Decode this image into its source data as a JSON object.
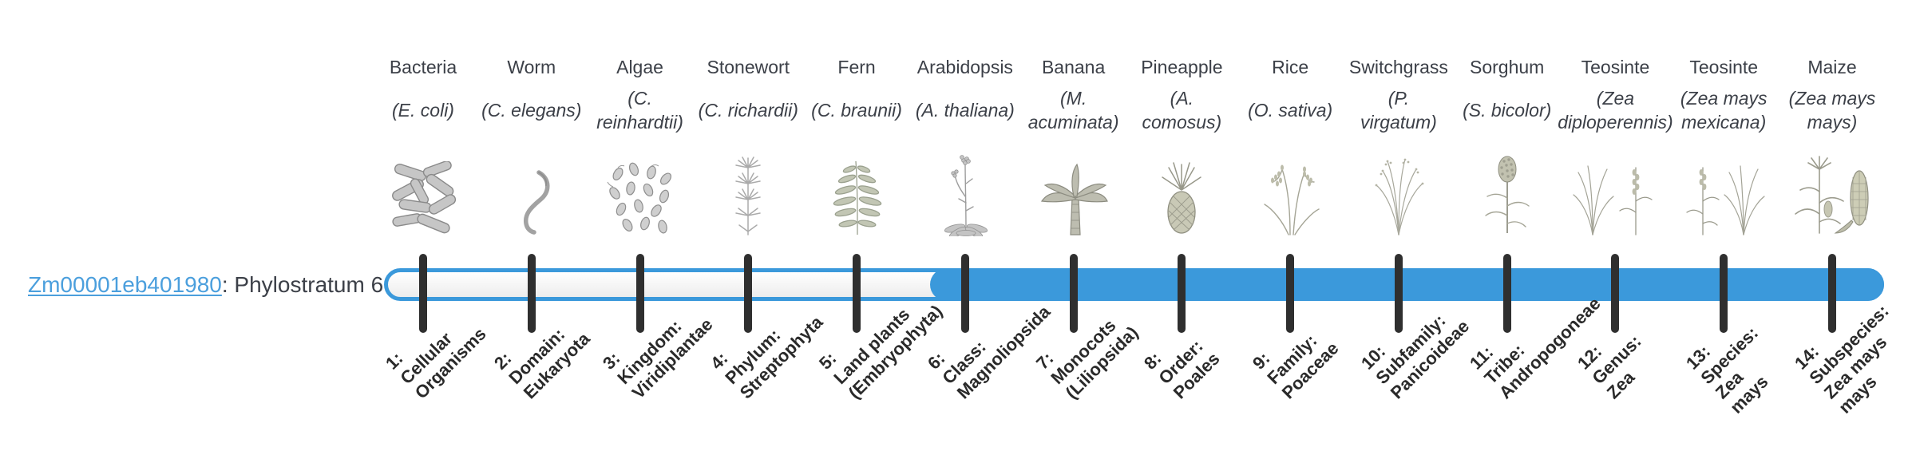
{
  "gene": {
    "id": "Zm00001eb401980",
    "suffix": ": Phylostratum 6"
  },
  "timeline": {
    "total_strata": 14,
    "fill_start_stratum": 6,
    "highlighted_stratum": 6
  },
  "colors": {
    "accent": "#3b99db",
    "link": "#4b9fdd",
    "tick": "#2f2f2f",
    "text": "#3c4048",
    "stratum_label": "#2a2a2a"
  },
  "taxa": [
    {
      "name": "Bacteria",
      "sci": "(E. coli)",
      "icon": "bacteria",
      "stratum": "1:\nCellular\nOrganisms"
    },
    {
      "name": "Worm",
      "sci": "(C. elegans)",
      "icon": "worm",
      "stratum": "2:\nDomain:\nEukaryota"
    },
    {
      "name": "Algae",
      "sci": "(C.\nreinhardtii)",
      "icon": "algae",
      "stratum": "3:\nKingdom:\nViridiplantae"
    },
    {
      "name": "Stonewort",
      "sci": "(C. richardii)",
      "icon": "stonewort",
      "stratum": "4:\nPhylum:\nStreptophyta"
    },
    {
      "name": "Fern",
      "sci": "(C. braunii)",
      "icon": "fern",
      "stratum": "5:\nLand plants\n(Embryophyta)"
    },
    {
      "name": "Arabidopsis",
      "sci": "(A. thaliana)",
      "icon": "arabidopsis",
      "stratum": "6:\nClass:\nMagnoliopsida"
    },
    {
      "name": "Banana",
      "sci": "(M.\nacuminata)",
      "icon": "banana",
      "stratum": "7:\nMonocots\n(Liliopsida)"
    },
    {
      "name": "Pineapple",
      "sci": "(A.\ncomosus)",
      "icon": "pineapple",
      "stratum": "8:\nOrder:\nPoales"
    },
    {
      "name": "Rice",
      "sci": "(O. sativa)",
      "icon": "rice",
      "stratum": "9:\nFamily:\nPoaceae"
    },
    {
      "name": "Switchgrass",
      "sci": "(P.\nvirgatum)",
      "icon": "switchgrass",
      "stratum": "10:\nSubfamily:\nPanicoideae"
    },
    {
      "name": "Sorghum",
      "sci": "(S. bicolor)",
      "icon": "sorghum",
      "stratum": "11:\nTribe:\nAndropogoneae"
    },
    {
      "name": "Teosinte",
      "sci": "(Zea\ndiploperennis)",
      "icon": "teosinte-diploperennis",
      "stratum": "12:\nGenus:\nZea"
    },
    {
      "name": "Teosinte",
      "sci": "(Zea mays\nmexicana)",
      "icon": "teosinte-mexicana",
      "stratum": "13:\nSpecies:\nZea\nmays"
    },
    {
      "name": "Maize",
      "sci": "(Zea mays\nmays)",
      "icon": "maize",
      "stratum": "14:\nSubspecies:\nZea mays\nmays"
    }
  ]
}
